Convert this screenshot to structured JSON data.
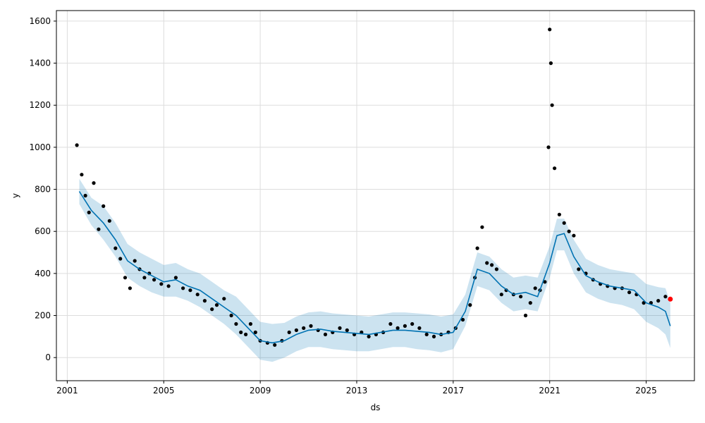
{
  "chart_data": {
    "type": "line",
    "title": "",
    "xlabel": "ds",
    "ylabel": "y",
    "xlim": [
      2000.55,
      2027.0
    ],
    "ylim": [
      -110,
      1650
    ],
    "xticks": [
      2001,
      2005,
      2009,
      2013,
      2017,
      2021,
      2025
    ],
    "xtick_labels": [
      "2001",
      "2005",
      "2009",
      "2013",
      "2017",
      "2021",
      "2025"
    ],
    "yticks": [
      0,
      200,
      400,
      600,
      800,
      1000,
      1200,
      1400,
      1600
    ],
    "ytick_labels": [
      "0",
      "200",
      "400",
      "600",
      "800",
      "1000",
      "1200",
      "1400",
      "1600"
    ],
    "grid": true,
    "colors": {
      "forecast_line": "#0072B2",
      "uncertainty_band": "#0072B2",
      "observed_points": "#000000",
      "highlight_point": "#FF0000",
      "grid": "#dddddd"
    },
    "forecast": {
      "x": [
        2001.5,
        2002.0,
        2002.5,
        2003.0,
        2003.5,
        2004.0,
        2004.5,
        2005.0,
        2005.5,
        2006.0,
        2006.5,
        2007.0,
        2007.5,
        2008.0,
        2008.5,
        2009.0,
        2009.5,
        2010.0,
        2010.5,
        2011.0,
        2011.5,
        2012.0,
        2012.5,
        2013.0,
        2013.5,
        2014.0,
        2014.5,
        2015.0,
        2015.5,
        2016.0,
        2016.5,
        2017.0,
        2017.5,
        2018.0,
        2018.5,
        2019.0,
        2019.5,
        2020.0,
        2020.5,
        2021.0,
        2021.3,
        2021.6,
        2022.0,
        2022.5,
        2023.0,
        2023.5,
        2024.0,
        2024.5,
        2025.0,
        2025.5,
        2025.8,
        2026.0
      ],
      "yhat": [
        790,
        700,
        640,
        560,
        460,
        420,
        390,
        360,
        370,
        340,
        320,
        280,
        240,
        200,
        140,
        80,
        70,
        80,
        110,
        130,
        135,
        125,
        120,
        115,
        110,
        120,
        130,
        130,
        125,
        120,
        110,
        120,
        220,
        420,
        400,
        340,
        300,
        310,
        290,
        450,
        580,
        590,
        480,
        390,
        360,
        340,
        330,
        320,
        260,
        240,
        220,
        150
      ],
      "yhat_lower": [
        730,
        630,
        560,
        480,
        380,
        340,
        310,
        290,
        290,
        270,
        240,
        200,
        160,
        110,
        50,
        -10,
        -20,
        0,
        30,
        50,
        50,
        40,
        35,
        30,
        30,
        40,
        50,
        50,
        40,
        35,
        25,
        40,
        150,
        340,
        320,
        260,
        220,
        230,
        220,
        380,
        510,
        510,
        400,
        310,
        280,
        260,
        250,
        230,
        170,
        140,
        110,
        45
      ],
      "yhat_upper": [
        850,
        760,
        720,
        640,
        540,
        500,
        470,
        440,
        450,
        420,
        400,
        360,
        320,
        290,
        230,
        170,
        160,
        165,
        195,
        215,
        220,
        210,
        205,
        200,
        195,
        205,
        215,
        215,
        210,
        205,
        195,
        205,
        300,
        500,
        480,
        420,
        380,
        390,
        380,
        530,
        660,
        660,
        560,
        470,
        440,
        420,
        410,
        400,
        350,
        335,
        330,
        260
      ]
    },
    "observed": {
      "x": [
        2001.4,
        2001.6,
        2001.75,
        2001.9,
        2002.1,
        2002.3,
        2002.5,
        2002.75,
        2003.0,
        2003.2,
        2003.4,
        2003.6,
        2003.8,
        2004.0,
        2004.2,
        2004.4,
        2004.6,
        2004.9,
        2005.2,
        2005.5,
        2005.8,
        2006.1,
        2006.4,
        2006.7,
        2007.0,
        2007.2,
        2007.5,
        2007.8,
        2008.0,
        2008.2,
        2008.4,
        2008.6,
        2008.8,
        2009.0,
        2009.3,
        2009.6,
        2009.9,
        2010.2,
        2010.5,
        2010.8,
        2011.1,
        2011.4,
        2011.7,
        2012.0,
        2012.3,
        2012.6,
        2012.9,
        2013.2,
        2013.5,
        2013.8,
        2014.1,
        2014.4,
        2014.7,
        2015.0,
        2015.3,
        2015.6,
        2015.9,
        2016.2,
        2016.5,
        2016.8,
        2017.1,
        2017.4,
        2017.7,
        2017.9,
        2018.0,
        2018.2,
        2018.4,
        2018.6,
        2018.8,
        2019.0,
        2019.2,
        2019.5,
        2019.8,
        2020.0,
        2020.2,
        2020.4,
        2020.6,
        2020.8,
        2020.95,
        2021.0,
        2021.05,
        2021.1,
        2021.2,
        2021.4,
        2021.6,
        2021.8,
        2022.0,
        2022.2,
        2022.5,
        2022.8,
        2023.1,
        2023.4,
        2023.7,
        2024.0,
        2024.3,
        2024.6,
        2024.9,
        2025.2,
        2025.5,
        2025.8
      ],
      "y": [
        1010,
        870,
        770,
        690,
        830,
        610,
        720,
        650,
        520,
        470,
        380,
        330,
        460,
        420,
        380,
        400,
        370,
        350,
        340,
        380,
        330,
        320,
        300,
        270,
        230,
        250,
        280,
        200,
        160,
        120,
        110,
        160,
        120,
        80,
        70,
        60,
        80,
        120,
        130,
        140,
        150,
        130,
        110,
        120,
        140,
        130,
        110,
        120,
        100,
        110,
        120,
        160,
        140,
        150,
        160,
        140,
        110,
        100,
        110,
        120,
        140,
        180,
        250,
        380,
        520,
        620,
        450,
        440,
        420,
        300,
        320,
        300,
        290,
        200,
        260,
        330,
        320,
        360,
        1000,
        1560,
        1400,
        1200,
        900,
        680,
        640,
        600,
        580,
        420,
        400,
        370,
        350,
        340,
        330,
        330,
        310,
        300,
        260,
        260,
        270,
        290
      ]
    },
    "highlight": {
      "x": [
        2026.0
      ],
      "y": [
        278
      ]
    }
  }
}
